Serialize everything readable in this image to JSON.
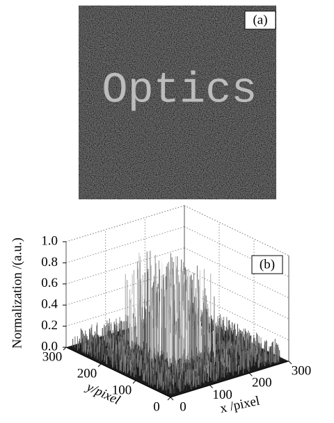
{
  "chart_data": [
    {
      "type": "image",
      "panel_label": "(a)",
      "image_text": "Optics"
    },
    {
      "type": "surface3d",
      "panel_label": "(b)",
      "zlabel": "Normalization /(a.u.)",
      "xlabel": "x /pixel",
      "ylabel": "y/pixel",
      "xlim": [
        0,
        300
      ],
      "ylim": [
        0,
        300
      ],
      "zlim": [
        0,
        1
      ],
      "xticks": [
        0,
        100,
        200,
        300
      ],
      "yticks": [
        0,
        100,
        200,
        300
      ],
      "zticks": [
        {
          "value": 0,
          "label": "0.0"
        },
        0.2,
        0.4,
        0.6,
        0.8,
        {
          "value": 1,
          "label": "1.0"
        }
      ],
      "grid": true
    }
  ]
}
